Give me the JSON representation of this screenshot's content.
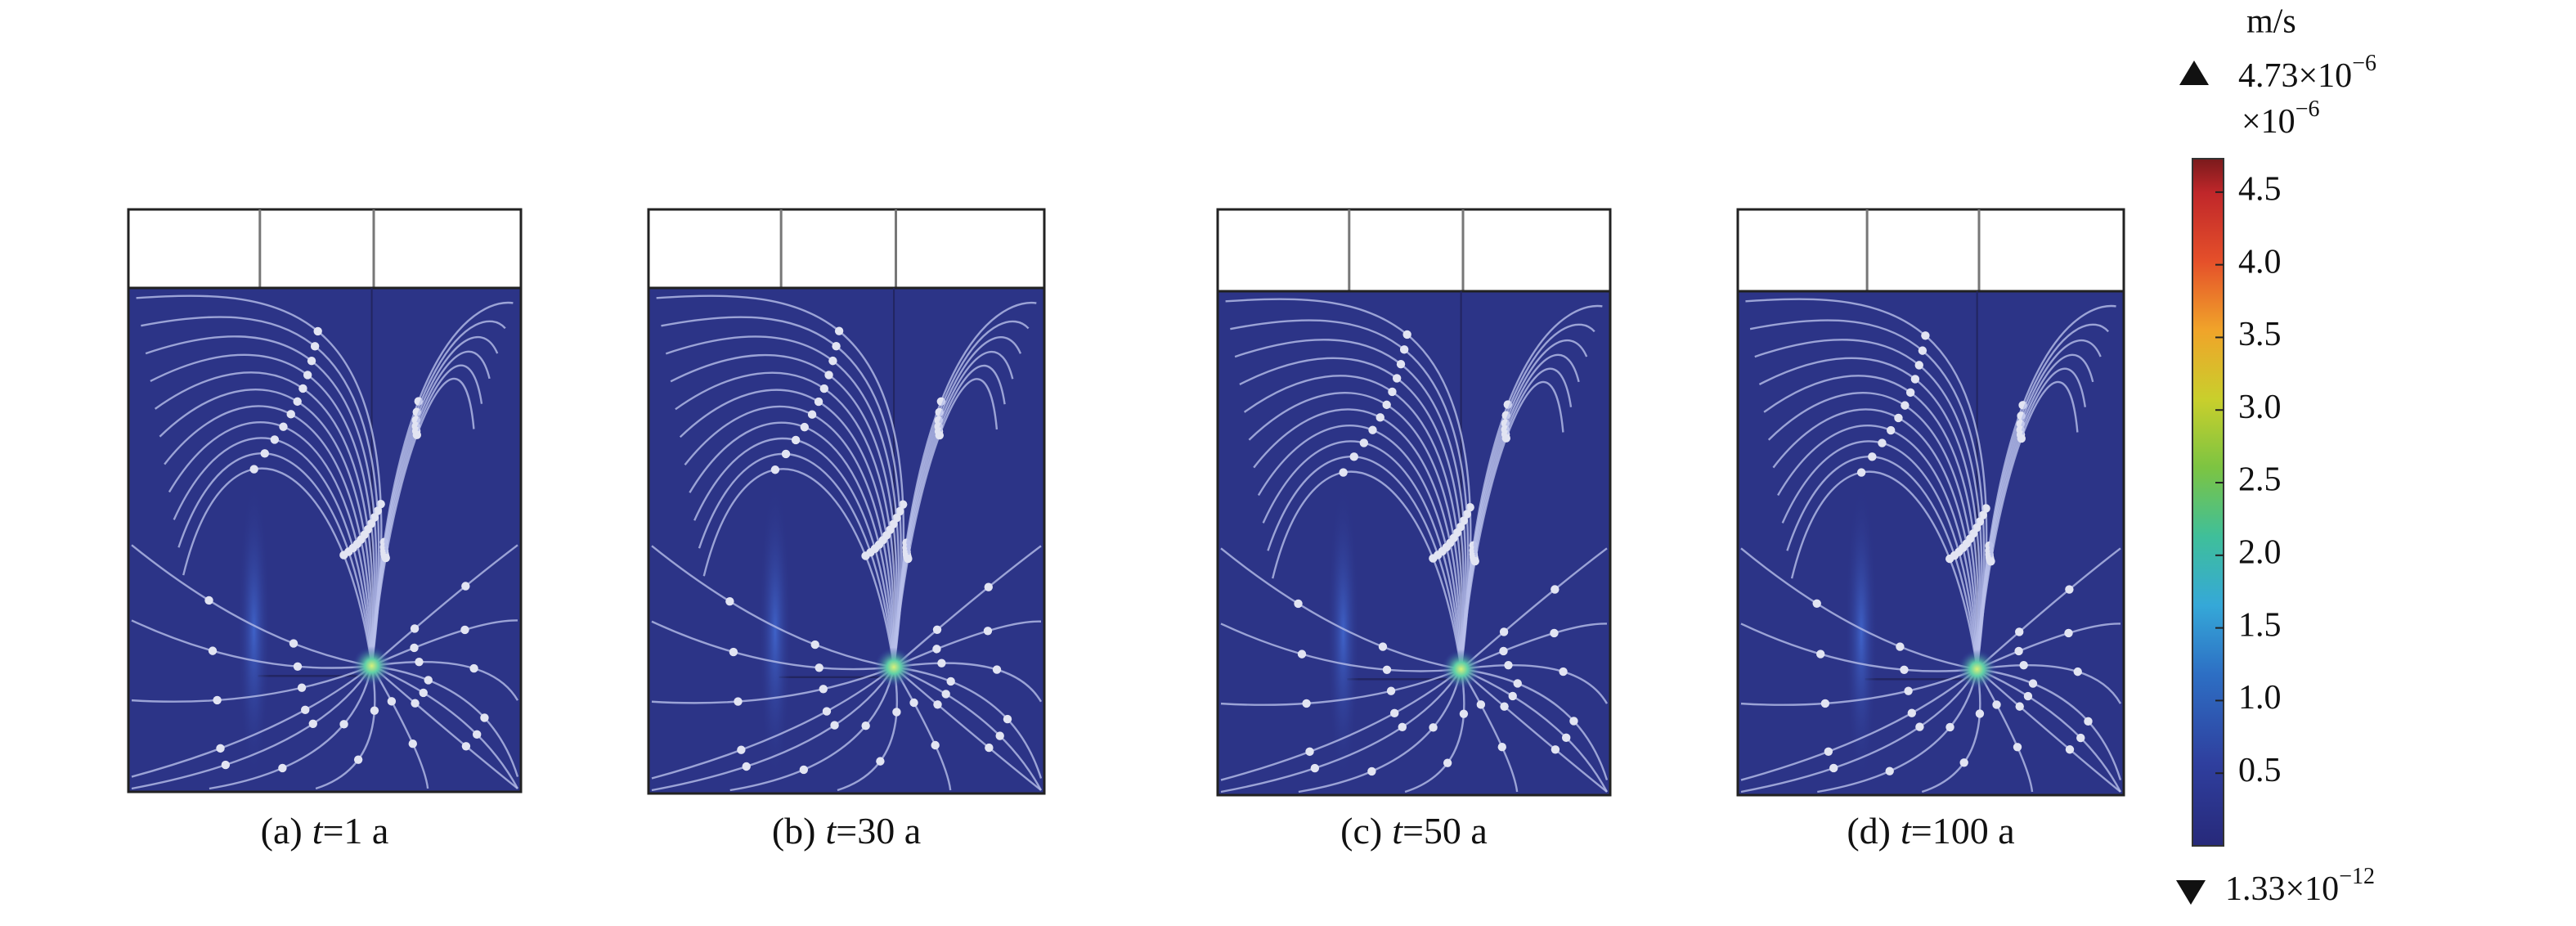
{
  "panels": [
    {
      "label": "(a)",
      "var": "t",
      "value": "=1 a"
    },
    {
      "label": "(b)",
      "var": "t",
      "value": "=30 a"
    },
    {
      "label": "(c)",
      "var": "t",
      "value": "=50 a"
    },
    {
      "label": "(d)",
      "var": "t",
      "value": "=100 a"
    }
  ],
  "colorbar": {
    "unit": "m/s",
    "max": {
      "base": "4.73×10",
      "exp": "−6"
    },
    "multiplier": {
      "base": "×10",
      "exp": "−6"
    },
    "min": {
      "base": "1.33×10",
      "exp": "−12"
    },
    "lim": [
      1.33e-06,
      4.73
    ],
    "ticks": [
      0.5,
      {
        "value": 1,
        "label": "1.0"
      },
      1.5,
      {
        "value": 2,
        "label": "2.0"
      },
      2.5,
      {
        "value": 3,
        "label": "3.0"
      },
      3.5,
      {
        "value": 4,
        "label": "4.0"
      },
      4.5
    ]
  }
}
